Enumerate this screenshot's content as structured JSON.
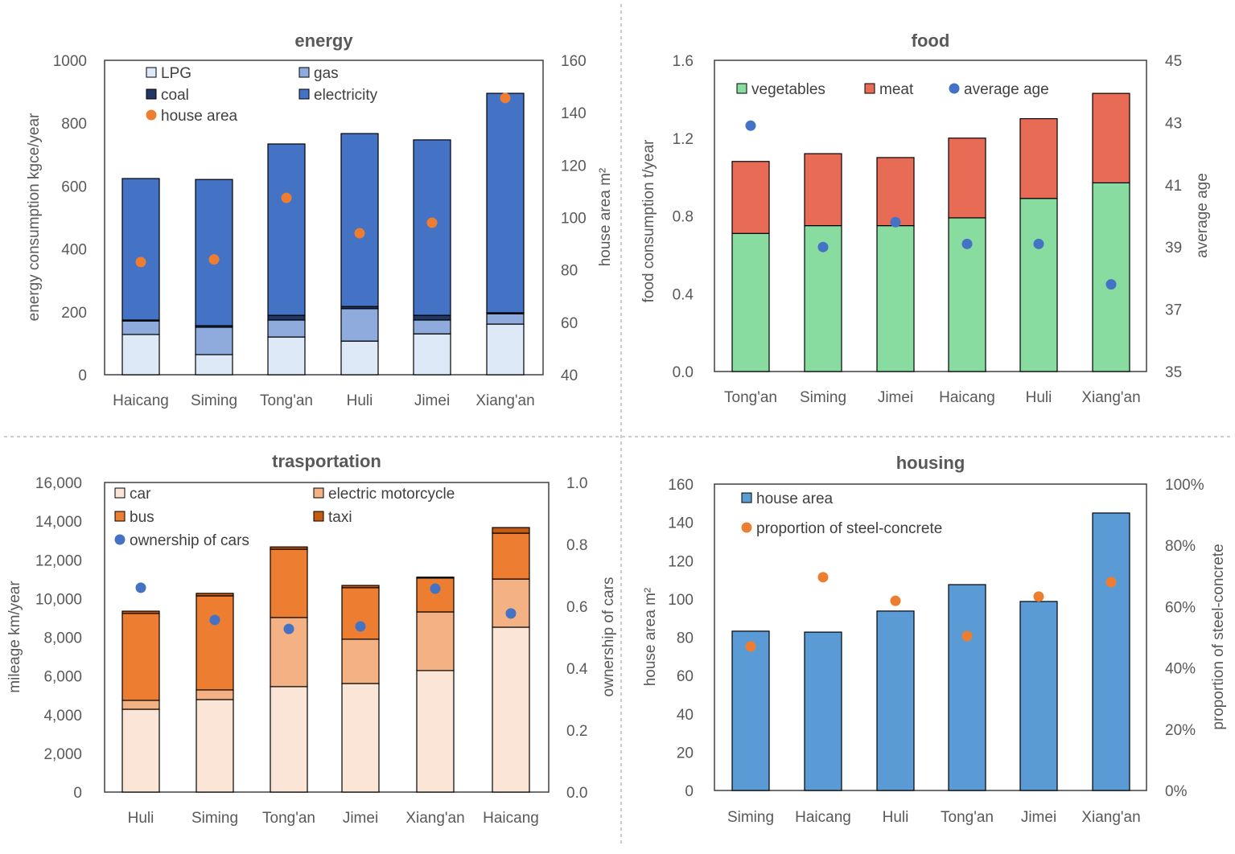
{
  "chart_data": [
    {
      "type": "bar",
      "stacked": true,
      "title": "energy",
      "ylabel": "energy consumption  kgce/year",
      "y2label": "house area  m²",
      "ylim": [
        0,
        1000
      ],
      "y2lim": [
        40,
        160
      ],
      "yticks": [
        "0",
        "200",
        "400",
        "600",
        "800",
        "1000"
      ],
      "y2ticks": [
        "40",
        "60",
        "80",
        "100",
        "120",
        "140",
        "160"
      ],
      "categories": [
        "Haicang",
        "Siming",
        "Tong'an",
        "Huli",
        "Jimei",
        "Xiang'an"
      ],
      "series": [
        {
          "name": "LPG",
          "color": "#dde9f6",
          "values": [
            128,
            64,
            120,
            107,
            130,
            161
          ]
        },
        {
          "name": "gas",
          "color": "#8faadc",
          "values": [
            43,
            87,
            54,
            103,
            44,
            33
          ]
        },
        {
          "name": "coal",
          "color": "#1f3864",
          "values": [
            3,
            5,
            15,
            7,
            15,
            3
          ]
        },
        {
          "name": "electricity",
          "color": "#4472c4",
          "values": [
            450,
            465,
            545,
            550,
            558,
            698
          ]
        }
      ],
      "points": {
        "name": "house area",
        "color": "#ed7d31",
        "axis": "right",
        "values": [
          83,
          84,
          107.5,
          94,
          98,
          145.6
        ]
      },
      "grid": false,
      "legend": "top-left"
    },
    {
      "type": "bar",
      "stacked": true,
      "title": "food",
      "ylabel": "food consumption   t/year",
      "y2label": "average age",
      "ylim": [
        0,
        1.6
      ],
      "y2lim": [
        35,
        45
      ],
      "yticks": [
        "0.0",
        "0.4",
        "0.8",
        "1.2",
        "1.6"
      ],
      "y2ticks": [
        "35",
        "37",
        "39",
        "41",
        "43",
        "45"
      ],
      "categories": [
        "Tong'an",
        "Siming",
        "Jimei",
        "Haicang",
        "Huli",
        "Xiang'an"
      ],
      "series": [
        {
          "name": "vegetables",
          "color": "#88dc9f",
          "values": [
            0.71,
            0.75,
            0.75,
            0.79,
            0.89,
            0.97
          ]
        },
        {
          "name": "meat",
          "color": "#e86c55",
          "values": [
            0.37,
            0.37,
            0.35,
            0.41,
            0.41,
            0.46
          ]
        }
      ],
      "points": {
        "name": "average age",
        "color": "#4472c4",
        "axis": "right",
        "values": [
          42.9,
          39.0,
          39.8,
          39.1,
          39.1,
          37.8
        ]
      },
      "grid": false,
      "legend": "top"
    },
    {
      "type": "bar",
      "stacked": true,
      "title": "trasportation",
      "ylabel": "mileage   km/year",
      "y2label": "ownership of cars",
      "ylim": [
        0,
        16000
      ],
      "y2lim": [
        0,
        1.0
      ],
      "yticks": [
        "0",
        "2,000",
        "4,000",
        "6,000",
        "8,000",
        "10,000",
        "12,000",
        "14,000",
        "16,000"
      ],
      "y2ticks": [
        "0.0",
        "0.2",
        "0.4",
        "0.6",
        "0.8",
        "1.0"
      ],
      "categories": [
        "Huli",
        "Siming",
        "Tong'an",
        "Jimei",
        "Xiang'an",
        "Haicang"
      ],
      "series": [
        {
          "name": "car",
          "color": "#fbe5d6",
          "values": [
            4280,
            4780,
            5450,
            5610,
            6280,
            8520
          ]
        },
        {
          "name": "electric motorcycle",
          "color": "#f4b183",
          "values": [
            460,
            500,
            3570,
            2290,
            3030,
            2490
          ]
        },
        {
          "name": "bus",
          "color": "#ed7d31",
          "values": [
            4490,
            4860,
            3530,
            2660,
            1750,
            2370
          ]
        },
        {
          "name": "taxi",
          "color": "#c55a11",
          "values": [
            120,
            130,
            120,
            120,
            50,
            290
          ]
        }
      ],
      "points": {
        "name": "ownership of cars",
        "color": "#4472c4",
        "axis": "right",
        "values": [
          0.66,
          0.556,
          0.527,
          0.535,
          0.657,
          0.577
        ]
      },
      "grid": false,
      "legend": "top-left"
    },
    {
      "type": "bar",
      "stacked": false,
      "title": "housing",
      "ylabel": "house area m²",
      "y2label": "proportion of steel-concrete",
      "ylim": [
        0,
        160
      ],
      "y2lim": [
        0,
        100
      ],
      "yticks": [
        "0",
        "20",
        "40",
        "60",
        "80",
        "100",
        "120",
        "140",
        "160"
      ],
      "y2ticks": [
        "0%",
        "20%",
        "40%",
        "60%",
        "80%",
        "100%"
      ],
      "categories": [
        "Siming",
        "Haicang",
        "Huli",
        "Tong'an",
        "Jimei",
        "Xiang'an"
      ],
      "series": [
        {
          "name": "house area",
          "color": "#5b9bd5",
          "values": [
            83.2,
            82.7,
            93.7,
            107.5,
            98.7,
            144.9
          ]
        }
      ],
      "points": {
        "name": "proportion of steel-concrete",
        "color": "#ed7d31",
        "axis": "right",
        "unit": "%",
        "values": [
          47,
          69.6,
          61.9,
          50.4,
          63.3,
          68
        ]
      },
      "grid": false,
      "legend": "top-left"
    }
  ]
}
